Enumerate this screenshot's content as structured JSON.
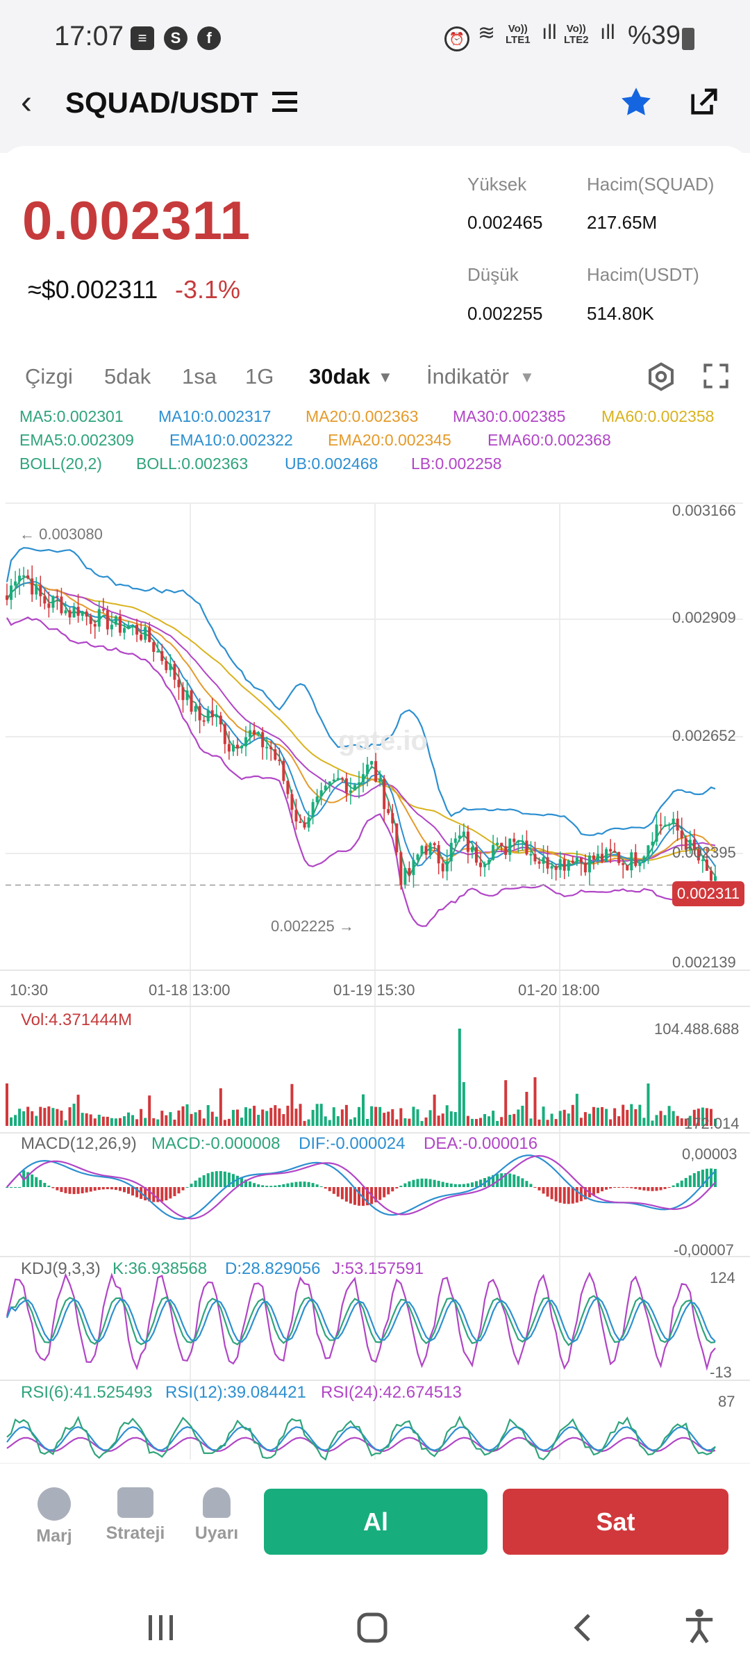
{
  "status_bar": {
    "time": "17:07",
    "sim1": "Vo))\nLTE1",
    "sim2": "Vo))\nLTE2",
    "battery": "%39"
  },
  "header": {
    "pair": "SQUAD/USDT"
  },
  "ticker": {
    "price": "0.002311",
    "usd_price": "≈$0.002311",
    "change": "-3.1%",
    "high_label": "Yüksek",
    "high_value": "0.002465",
    "low_label": "Düşük",
    "low_value": "0.002255",
    "vol_base_label": "Hacim(SQUAD)",
    "vol_base_value": "217.65M",
    "vol_quote_label": "Hacim(USDT)",
    "vol_quote_value": "514.80K"
  },
  "tabs": [
    {
      "label": "Çizgi",
      "active": false
    },
    {
      "label": "5dak",
      "active": false
    },
    {
      "label": "1sa",
      "active": false
    },
    {
      "label": "1G",
      "active": false
    },
    {
      "label": "30dak",
      "active": true
    },
    {
      "label": "İndikatör",
      "active": false
    }
  ],
  "legend": {
    "row1": [
      {
        "text": "MA5:0.002301",
        "color": "#2fa47a"
      },
      {
        "text": "MA10:0.002317",
        "color": "#2c8fd0"
      },
      {
        "text": "MA20:0.002363",
        "color": "#e49a2a"
      },
      {
        "text": "MA30:0.002385",
        "color": "#b145c6"
      },
      {
        "text": "MA60:0.002358",
        "color": "#d9b21d"
      }
    ],
    "row2": [
      {
        "text": "EMA5:0.002309",
        "color": "#2fa47a"
      },
      {
        "text": "EMA10:0.002322",
        "color": "#2c8fd0"
      },
      {
        "text": "EMA20:0.002345",
        "color": "#e49a2a"
      },
      {
        "text": "EMA60:0.002368",
        "color": "#b145c6"
      }
    ],
    "row3": [
      {
        "text": "BOLL(20,2)",
        "color": "#2fa47a"
      },
      {
        "text": "BOLL:0.002363",
        "color": "#2fa47a"
      },
      {
        "text": "UB:0.002468",
        "color": "#2c8fd0"
      },
      {
        "text": "LB:0.002258",
        "color": "#b145c6"
      }
    ]
  },
  "price_axis": [
    "0.003166",
    "0.002909",
    "0.002652",
    "0.002395",
    "0.002139"
  ],
  "time_axis": [
    "10:30",
    "01-18 13:00",
    "01-19 15:30",
    "01-20 18:00"
  ],
  "chart_marks": {
    "high_marker": "← 0.003080",
    "low_marker": "0.002225 →",
    "current_price_tag": "0.002311",
    "watermark": "gate.io"
  },
  "volume_panel": {
    "title": "Vol:4.371444M",
    "axis_max": "104.488.688",
    "axis_min": "172.014"
  },
  "macd_panel": {
    "title": "MACD(12,26,9)",
    "macd": "MACD:-0.000008",
    "dif": "DIF:-0.000024",
    "dea": "DEA:-0.000016",
    "axis_max": "0,00003",
    "axis_min": "-0,00007"
  },
  "kdj_panel": {
    "title": "KDJ(9,3,3)",
    "k": "K:36.938568",
    "d": "D:28.829056",
    "j": "J:53.157591",
    "axis_max": "124",
    "axis_min": "-13"
  },
  "rsi_panel": {
    "rsi6": "RSI(6):41.525493",
    "rsi12": "RSI(12):39.084421",
    "rsi24": "RSI(24):42.674513",
    "axis_max": "87"
  },
  "bottom_bar": {
    "margin_label": "Marj",
    "strategy_label": "Strateji",
    "alert_label": "Uyarı",
    "buy_label": "Al",
    "sell_label": "Sat"
  },
  "colors": {
    "up": "#18ad7c",
    "down": "#d1383b",
    "accent_blue": "#1565e0"
  },
  "chart_data": {
    "type": "candlestick",
    "pair": "SQUAD/USDT",
    "interval": "30dak",
    "ylim": [
      0.002139,
      0.003166
    ],
    "x_ticks": [
      "10:30",
      "01-18 13:00",
      "01-19 15:30",
      "01-20 18:00"
    ],
    "close_path": [
      0.00295,
      0.00302,
      0.003,
      0.00296,
      0.00294,
      0.00295,
      0.00292,
      0.00293,
      0.00291,
      0.00291,
      0.0029,
      0.00289,
      0.00289,
      0.00288,
      0.00286,
      0.00283,
      0.0028,
      0.00276,
      0.00272,
      0.00268,
      0.0027,
      0.00267,
      0.00262,
      0.00264,
      0.00265,
      0.00263,
      0.00262,
      0.00257,
      0.0025,
      0.00244,
      0.00248,
      0.0025,
      0.00253,
      0.00255,
      0.00253,
      0.00256,
      0.00258,
      0.00252,
      0.00246,
      0.00232,
      0.00234,
      0.0024,
      0.00239,
      0.00236,
      0.0024,
      0.00242,
      0.00238,
      0.00237,
      0.0024,
      0.00238,
      0.00243,
      0.00241,
      0.00238,
      0.00236,
      0.00237,
      0.00236,
      0.00238,
      0.00236,
      0.00237,
      0.00237,
      0.00238,
      0.00236,
      0.00237,
      0.00239,
      0.00244,
      0.00245,
      0.00244,
      0.00241,
      0.00238,
      0.00234,
      0.00231
    ]
  }
}
